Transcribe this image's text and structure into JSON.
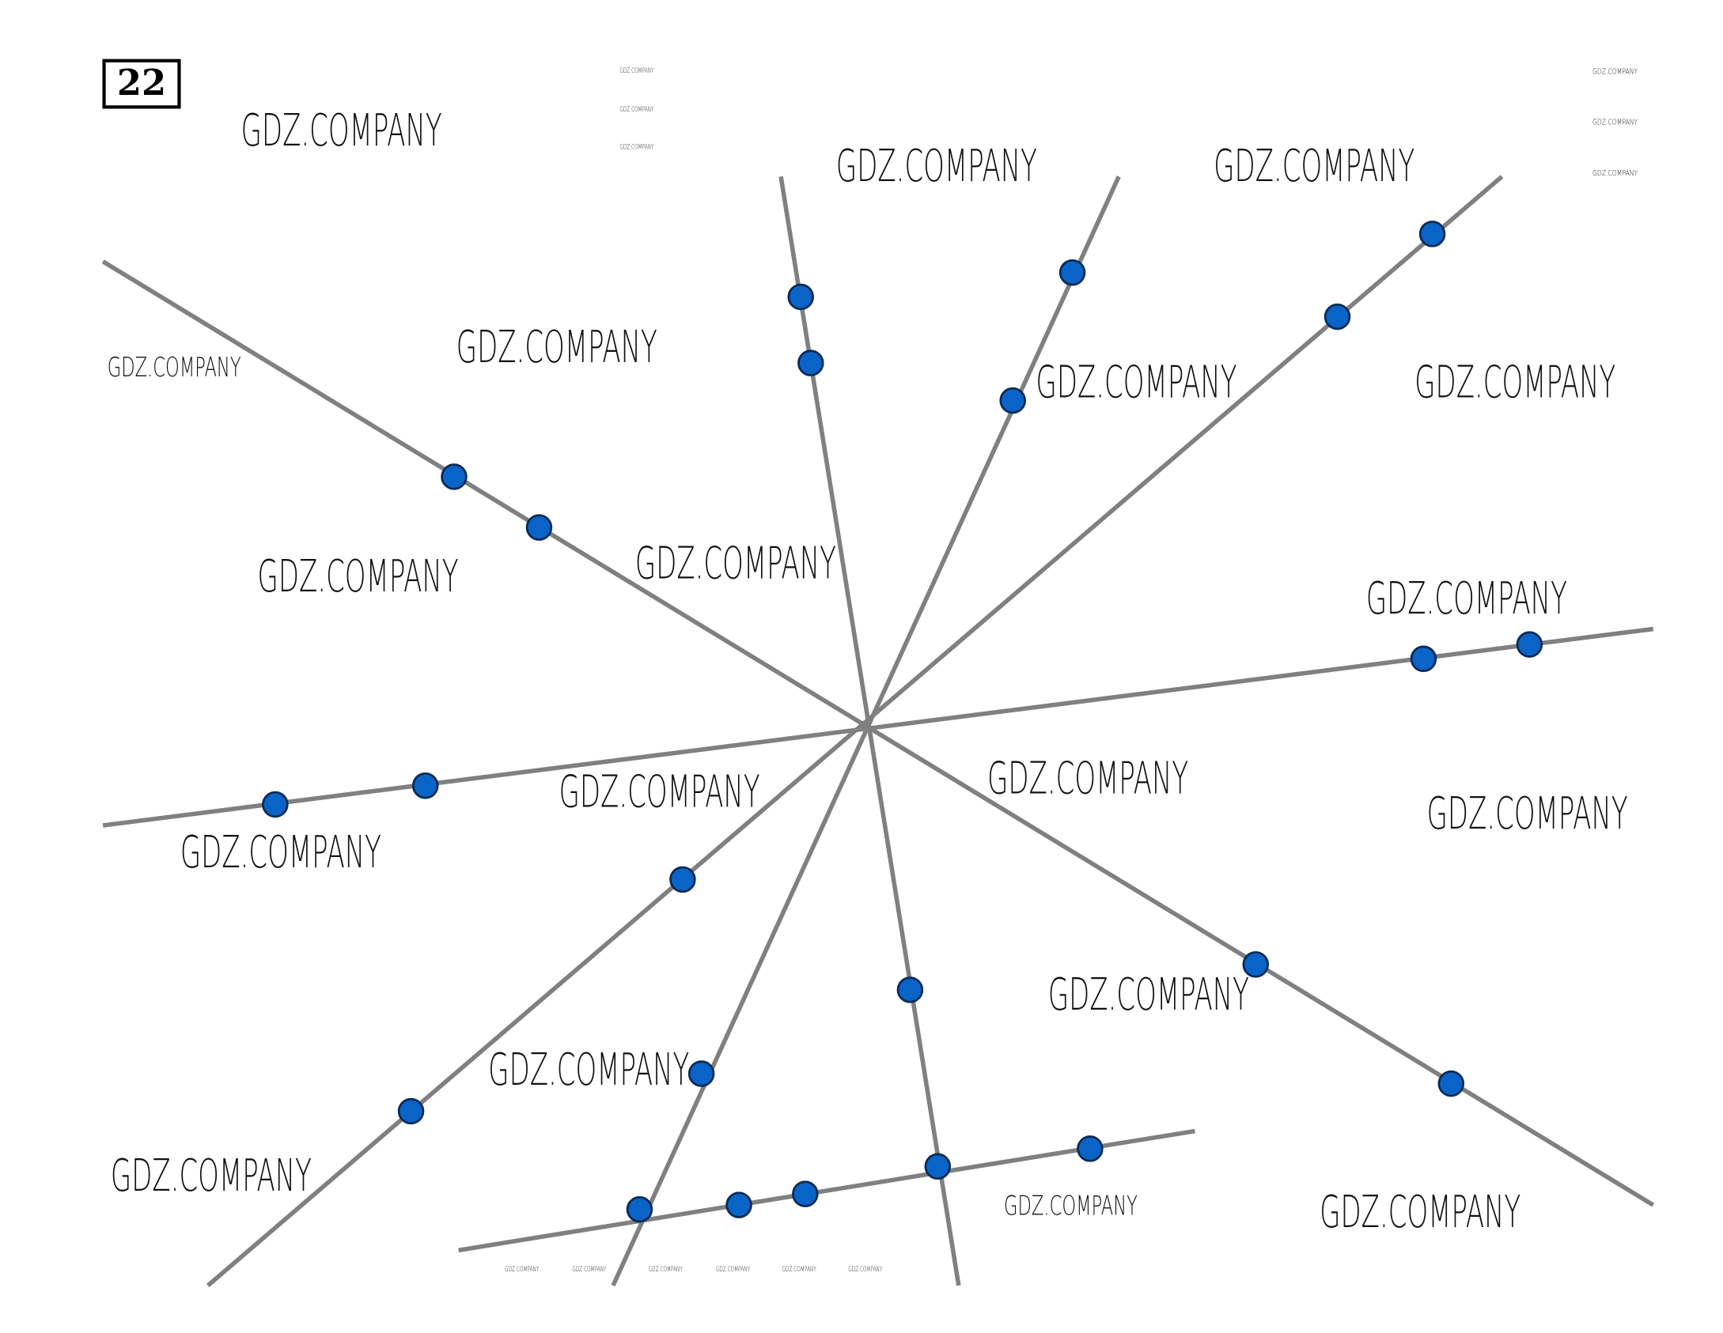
{
  "label": "22",
  "watermarks": [
    "GDZ.COMPANY",
    "GDZ.COMPANY",
    "GDZ.COMPANY",
    "GDZ.COMPANY",
    "GDZ.COMPANY",
    "GDZ.COMPANY",
    "GDZ.COMPANY",
    "GDZ.COMPANY",
    "GDZ.COMPANY",
    "GDZ.COMPANY",
    "GDZ.COMPANY",
    "GDZ.COMPANY",
    "GDZ.COMPANY",
    "GDZ.COMPANY",
    "GDZ.COMPANY",
    "GDZ.COMPANY",
    "GDZ.COMPANY",
    "GDZ.COMPANY",
    "GDZ.COMPANY",
    "GDZ.COMPANY",
    "GDZ.COMPANY",
    "GDZ.COMPANY",
    "GDZ.COMPANY",
    "GDZ.COMPANY",
    "GDZ.COMPANY",
    "GDZ.COMPANY",
    "GDZ.COMPANY",
    "GDZ.COMPANY",
    "GDZ.COMPANY",
    "GDZ.COMPANY",
    "GDZ.COMPANY"
  ]
}
